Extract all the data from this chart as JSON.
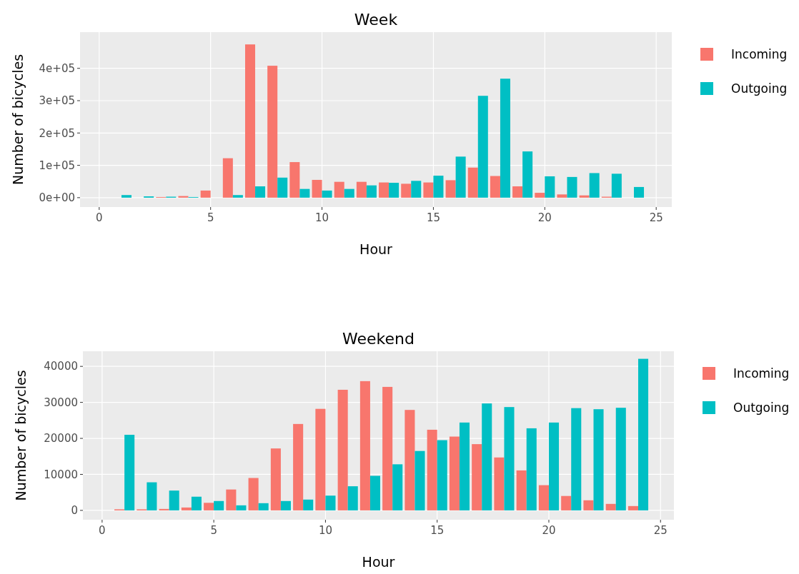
{
  "chart_data": [
    {
      "type": "bar",
      "title": "Week",
      "xlabel": "Hour",
      "ylabel": "Number of bicycles",
      "x": [
        1,
        2,
        3,
        4,
        5,
        6,
        7,
        8,
        9,
        10,
        11,
        12,
        13,
        14,
        15,
        16,
        17,
        18,
        19,
        20,
        21,
        22,
        23,
        24
      ],
      "series": [
        {
          "name": "Incoming",
          "color": "#f8766d",
          "values": [
            null,
            null,
            2000,
            5000,
            22000,
            122000,
            474000,
            408000,
            110000,
            55000,
            49000,
            49000,
            47000,
            43000,
            47000,
            54000,
            93000,
            67000,
            35000,
            15000,
            10000,
            7000,
            3000,
            null
          ]
        },
        {
          "name": "Outgoing",
          "color": "#00bfc4",
          "values": [
            8000,
            4000,
            3000,
            2000,
            null,
            8000,
            35000,
            62000,
            27000,
            22000,
            27000,
            38000,
            46000,
            52000,
            68000,
            127000,
            315000,
            368000,
            143000,
            66000,
            64000,
            76000,
            74000,
            33000
          ]
        }
      ],
      "xlim": [
        -0.86,
        25.7
      ],
      "xticks": [
        0,
        5,
        10,
        15,
        20,
        25
      ],
      "ylim": [
        -29000,
        512000
      ],
      "yticks": [
        {
          "value": 0,
          "label": "0e+00"
        },
        {
          "value": 100000,
          "label": "1e+05"
        },
        {
          "value": 200000,
          "label": "2e+05"
        },
        {
          "value": 300000,
          "label": "3e+05"
        },
        {
          "value": 400000,
          "label": "4e+05"
        }
      ],
      "grid": true,
      "legend": "right"
    },
    {
      "type": "bar",
      "title": "Weekend",
      "xlabel": "Hour",
      "ylabel": "Number of bicycles",
      "x": [
        1,
        2,
        3,
        4,
        5,
        6,
        7,
        8,
        9,
        10,
        11,
        12,
        13,
        14,
        15,
        16,
        17,
        18,
        19,
        20,
        21,
        22,
        23,
        24
      ],
      "series": [
        {
          "name": "Incoming",
          "color": "#f8766d",
          "values": [
            300,
            300,
            400,
            800,
            2100,
            5800,
            9000,
            17200,
            24000,
            28200,
            33500,
            35900,
            34300,
            27900,
            22400,
            20500,
            18400,
            14700,
            11100,
            7000,
            4000,
            2800,
            1800,
            1200
          ]
        },
        {
          "name": "Outgoing",
          "color": "#00bfc4",
          "values": [
            21000,
            7800,
            5500,
            3800,
            2600,
            1400,
            2000,
            2600,
            3000,
            4100,
            6700,
            9600,
            12800,
            16500,
            19500,
            24400,
            29700,
            28700,
            22800,
            24400,
            28400,
            28100,
            28500,
            42100
          ]
        }
      ],
      "xlim": [
        -0.86,
        25.6
      ],
      "xticks": [
        0,
        5,
        10,
        15,
        20,
        25
      ],
      "ylim": [
        -2600,
        44200
      ],
      "yticks": [
        0,
        10000,
        20000,
        30000,
        40000
      ],
      "grid": true,
      "legend": "right"
    }
  ]
}
